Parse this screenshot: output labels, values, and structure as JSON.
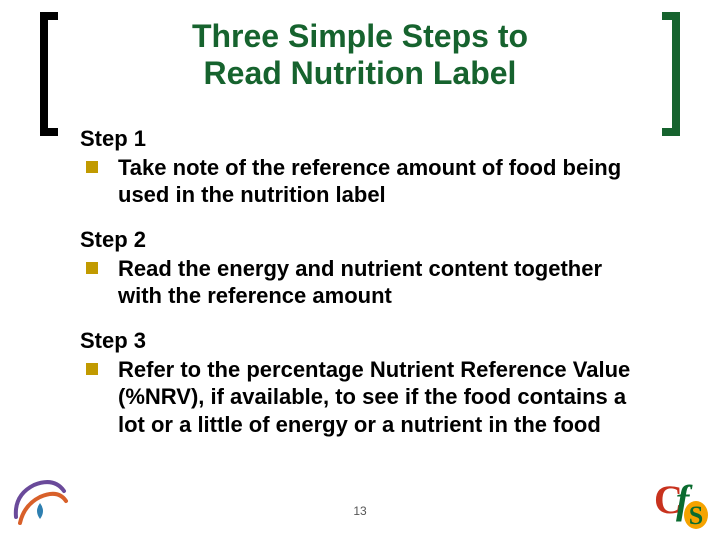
{
  "title": {
    "line1": "Three Simple Steps to",
    "line2": "Read Nutrition Label",
    "color": "#16632e",
    "fontsize": 32,
    "bracket_color": "#16632e",
    "bracket_left_color": "#000000"
  },
  "bullet_color": "#c19a00",
  "text_color": "#000000",
  "body_fontsize": 22,
  "steps": [
    {
      "heading": "Step 1",
      "text": "Take note of the reference amount of food being used in the nutrition label"
    },
    {
      "heading": "Step 2",
      "text": "Read the energy and nutrient content together with the reference amount"
    },
    {
      "heading": "Step 3",
      "text": "Refer to the percentage Nutrient Reference Value (%NRV), if available, to see if the food contains a lot or a little of energy or a nutrient in the food"
    }
  ],
  "page_number": "13",
  "logos": {
    "left": {
      "stroke1": "#6a4a9a",
      "stroke2": "#d8602a",
      "accent": "#2e7fb0"
    },
    "right": {
      "c_color": "#c8321e",
      "f_color": "#0a6b2f",
      "s_fill": "#f5a300",
      "s_text": "#0a6b2f"
    }
  }
}
